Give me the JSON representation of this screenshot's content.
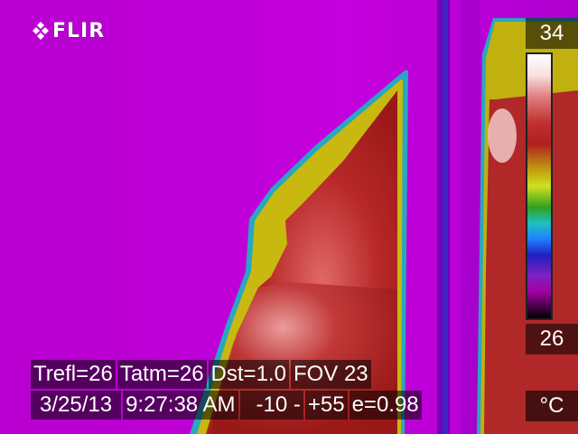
{
  "brand": {
    "name": "FLIR"
  },
  "colors": {
    "background": "#c000d8",
    "hot": "#b02828",
    "warm": "#c8b010",
    "edge": "#20a0c0"
  },
  "scale": {
    "max": "34",
    "min": "26",
    "unit": "°C"
  },
  "parameters": {
    "trefl": "Trefl=26",
    "tatm": "Tatm=26",
    "dst": "Dst=1.0",
    "fov": "FOV 23"
  },
  "status": {
    "date": "3/25/13",
    "time": "9:27:38 AM",
    "range_low": "-10 -",
    "range_high": "+55",
    "emissivity": "e=0.98"
  }
}
